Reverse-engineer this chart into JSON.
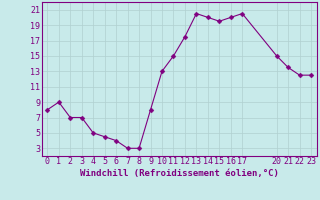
{
  "x": [
    0,
    1,
    2,
    3,
    4,
    5,
    6,
    7,
    8,
    9,
    10,
    11,
    12,
    13,
    14,
    15,
    16,
    17,
    20,
    21,
    22,
    23
  ],
  "y": [
    8,
    9,
    7,
    7,
    5,
    4.5,
    4,
    3,
    3,
    8,
    13,
    15,
    17.5,
    20.5,
    20,
    19.5,
    20,
    20.5,
    15,
    13.5,
    12.5,
    12.5
  ],
  "line_color": "#800080",
  "marker": "D",
  "marker_size": 2.5,
  "bg_color": "#c8eaea",
  "grid_color": "#b0d0d0",
  "xlabel": "Windchill (Refroidissement éolien,°C)",
  "xlim": [
    -0.5,
    23.5
  ],
  "ylim": [
    2,
    22
  ],
  "yticks": [
    3,
    5,
    7,
    9,
    11,
    13,
    15,
    17,
    19,
    21
  ],
  "xticks": [
    0,
    1,
    2,
    3,
    4,
    5,
    6,
    7,
    8,
    9,
    10,
    11,
    12,
    13,
    14,
    15,
    16,
    17,
    20,
    21,
    22,
    23
  ],
  "tick_color": "#800080",
  "label_color": "#800080",
  "tick_fontsize": 6,
  "xlabel_fontsize": 6.5,
  "spine_color": "#800080"
}
